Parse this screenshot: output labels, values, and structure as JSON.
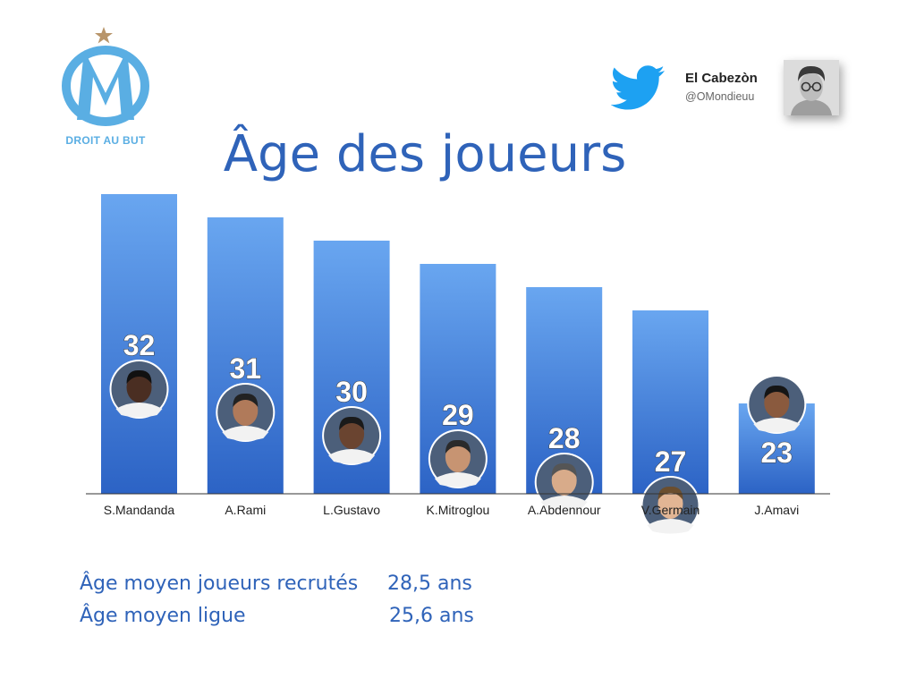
{
  "header": {
    "club_motto": "DROIT AU BUT",
    "title": "Âge des joueurs",
    "author_name": "El Cabezòn",
    "author_handle": "@OMondieuu"
  },
  "colors": {
    "title": "#2f63b9",
    "bar_top": "#69a6f0",
    "bar_bottom": "#2c63c5",
    "logo": "#5aaee3",
    "star": "#b8956a",
    "twitter": "#1da1f2"
  },
  "icons": {
    "club_logo": "om-logo-icon",
    "bird": "twitter-bird-icon",
    "author": "author-avatar-icon"
  },
  "chart_data": {
    "type": "bar",
    "categories": [
      "S.Mandanda",
      "A.Rami",
      "L.Gustavo",
      "K.Mitroglou",
      "A.Abdennour",
      "V.Germain",
      "J.Amavi"
    ],
    "values": [
      32,
      31,
      30,
      29,
      28,
      27,
      23
    ],
    "title": "Âge des joueurs",
    "xlabel": "",
    "ylabel": "",
    "data_labels": true,
    "grid": false,
    "legend": "none"
  },
  "stats": [
    {
      "label": "Âge moyen joueurs recrutés",
      "value": "28,5 ans"
    },
    {
      "label": "Âge moyen ligue",
      "value": "25,6 ans"
    }
  ]
}
